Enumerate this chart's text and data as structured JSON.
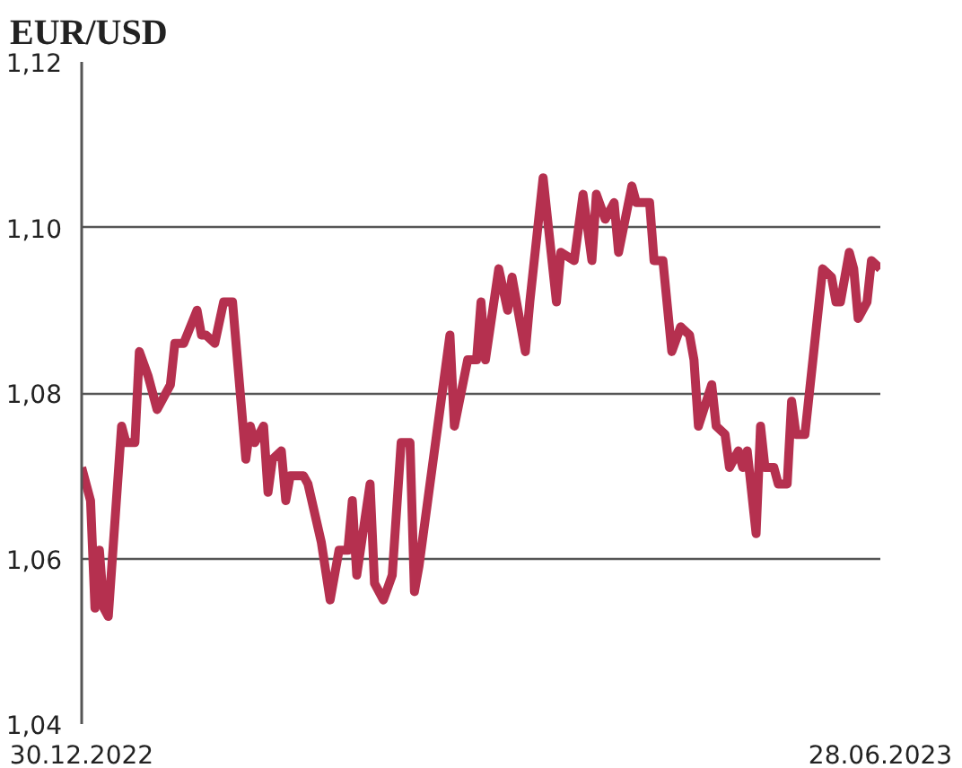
{
  "chart_data": {
    "type": "line",
    "title": "EUR/USD",
    "x": [
      "2022-12-30",
      "2023-01-01",
      "2023-01-02",
      "2023-01-03",
      "2023-01-04",
      "2023-01-05",
      "2023-01-08",
      "2023-01-09",
      "2023-01-11",
      "2023-01-12",
      "2023-01-14",
      "2023-01-16",
      "2023-01-19",
      "2023-01-20",
      "2023-01-22",
      "2023-01-25",
      "2023-01-26",
      "2023-01-27",
      "2023-01-29",
      "2023-01-31",
      "2023-02-02",
      "2023-02-05",
      "2023-02-06",
      "2023-02-07",
      "2023-02-09",
      "2023-02-10",
      "2023-02-11",
      "2023-02-13",
      "2023-02-14",
      "2023-02-15",
      "2023-02-18",
      "2023-02-19",
      "2023-02-22",
      "2023-02-24",
      "2023-02-26",
      "2023-02-28",
      "2023-03-01",
      "2023-03-02",
      "2023-03-05",
      "2023-03-06",
      "2023-03-08",
      "2023-03-10",
      "2023-03-12",
      "2023-03-14",
      "2023-03-15",
      "2023-03-16",
      "2023-03-18",
      "2023-03-21",
      "2023-03-23",
      "2023-03-24",
      "2023-03-27",
      "2023-03-29",
      "2023-03-30",
      "2023-03-31",
      "2023-04-03",
      "2023-04-05",
      "2023-04-06",
      "2023-04-09",
      "2023-04-10",
      "2023-04-13",
      "2023-04-16",
      "2023-04-17",
      "2023-04-20",
      "2023-04-22",
      "2023-04-24",
      "2023-04-25",
      "2023-04-27",
      "2023-04-29",
      "2023-04-30",
      "2023-05-03",
      "2023-05-04",
      "2023-05-07",
      "2023-05-08",
      "2023-05-10",
      "2023-05-12",
      "2023-05-14",
      "2023-05-16",
      "2023-05-17",
      "2023-05-18",
      "2023-05-21",
      "2023-05-22",
      "2023-05-24",
      "2023-05-25",
      "2023-05-27",
      "2023-05-28",
      "2023-05-29",
      "2023-05-31",
      "2023-06-01",
      "2023-06-02",
      "2023-06-04",
      "2023-06-05",
      "2023-06-07",
      "2023-06-08",
      "2023-06-09",
      "2023-06-11",
      "2023-06-13",
      "2023-06-15",
      "2023-06-17",
      "2023-06-18",
      "2023-06-19",
      "2023-06-21",
      "2023-06-22",
      "2023-06-23",
      "2023-06-25",
      "2023-06-26",
      "2023-06-28"
    ],
    "series": [
      {
        "color": "#b5304f",
        "values": [
          1.071,
          1.067,
          1.054,
          1.061,
          1.054,
          1.053,
          1.076,
          1.074,
          1.074,
          1.085,
          1.082,
          1.078,
          1.081,
          1.086,
          1.086,
          1.09,
          1.087,
          1.087,
          1.086,
          1.091,
          1.091,
          1.072,
          1.076,
          1.074,
          1.076,
          1.068,
          1.072,
          1.073,
          1.067,
          1.07,
          1.07,
          1.069,
          1.062,
          1.055,
          1.061,
          1.061,
          1.067,
          1.058,
          1.069,
          1.057,
          1.055,
          1.058,
          1.074,
          1.074,
          1.056,
          1.059,
          1.067,
          1.079,
          1.087,
          1.076,
          1.084,
          1.084,
          1.091,
          1.084,
          1.095,
          1.09,
          1.094,
          1.085,
          1.091,
          1.106,
          1.091,
          1.097,
          1.096,
          1.104,
          1.096,
          1.104,
          1.101,
          1.103,
          1.097,
          1.105,
          1.103,
          1.103,
          1.096,
          1.096,
          1.085,
          1.088,
          1.087,
          1.084,
          1.076,
          1.081,
          1.076,
          1.075,
          1.071,
          1.073,
          1.071,
          1.073,
          1.063,
          1.076,
          1.071,
          1.071,
          1.069,
          1.069,
          1.079,
          1.075,
          1.075,
          1.085,
          1.095,
          1.094,
          1.091,
          1.091,
          1.097,
          1.095,
          1.089,
          1.091,
          1.096,
          1.095
        ]
      }
    ],
    "xlim": [
      "2022-12-30",
      "2023-06-28"
    ],
    "xticks": [
      {
        "value": "2022-12-30",
        "label": "30.12.2022"
      },
      {
        "value": "2023-06-28",
        "label": "28.06.2023"
      }
    ],
    "ylim": [
      1.04,
      1.12
    ],
    "yticks": [
      {
        "value": 1.04,
        "label": "1,04"
      },
      {
        "value": 1.06,
        "label": "1,06"
      },
      {
        "value": 1.08,
        "label": "1,08"
      },
      {
        "value": 1.1,
        "label": "1,10"
      },
      {
        "value": 1.12,
        "label": "1,12"
      }
    ],
    "grid": "y"
  }
}
